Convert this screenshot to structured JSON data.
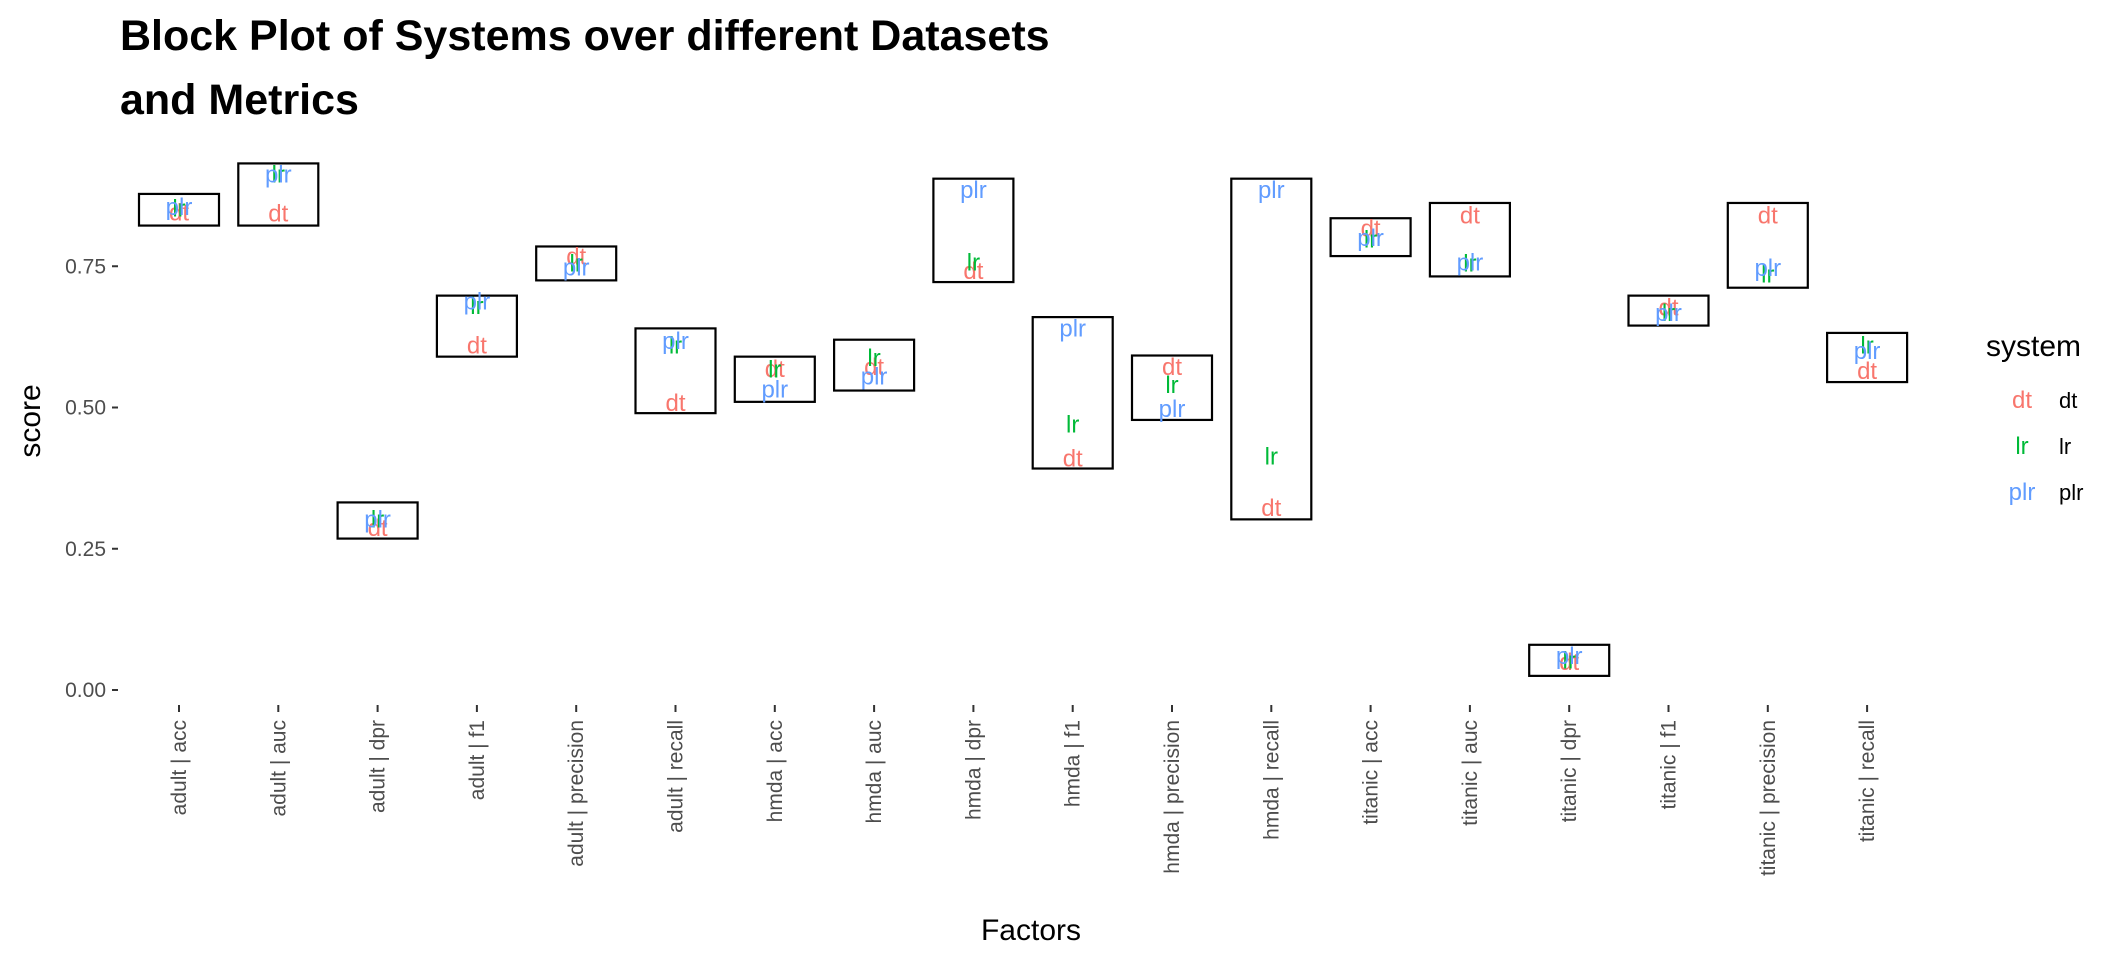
{
  "chart_data": {
    "type": "block",
    "title": "Block Plot of Systems over different Datasets and Metrics",
    "xlabel": "Factors",
    "ylabel": "score",
    "ylim": [
      0,
      1
    ],
    "yticks": [
      0.0,
      0.25,
      0.5,
      0.75
    ],
    "ytick_labels": [
      "0.00",
      "0.25",
      "0.50",
      "0.75"
    ],
    "grid": false,
    "legend_position": "right",
    "legend_title": "system",
    "legend": [
      {
        "key": "dt",
        "label": "dt",
        "color": "#F8766D"
      },
      {
        "key": "lr",
        "label": "lr",
        "color": "#00BA38"
      },
      {
        "key": "plr",
        "label": "plr",
        "color": "#619CFF"
      }
    ],
    "categories": [
      "adult | acc",
      "adult | auc",
      "adult | dpr",
      "adult | f1",
      "adult | precision",
      "adult | recall",
      "hmda | acc",
      "hmda | auc",
      "hmda | dpr",
      "hmda | f1",
      "hmda | precision",
      "hmda | recall",
      "titanic | acc",
      "titanic | auc",
      "titanic | dpr",
      "titanic | f1",
      "titanic | precision",
      "titanic | recall"
    ],
    "series": [
      {
        "name": "dt",
        "values": [
          0.845,
          0.843,
          0.287,
          0.61,
          0.767,
          0.508,
          0.568,
          0.572,
          0.742,
          0.41,
          0.572,
          0.322,
          0.817,
          0.84,
          0.05,
          0.677,
          0.84,
          0.565
        ]
      },
      {
        "name": "lr",
        "values": [
          0.852,
          0.912,
          0.302,
          0.68,
          0.755,
          0.61,
          0.567,
          0.588,
          0.757,
          0.47,
          0.54,
          0.413,
          0.797,
          0.755,
          0.052,
          0.667,
          0.735,
          0.61
        ]
      },
      {
        "name": "plr",
        "values": [
          0.855,
          0.912,
          0.302,
          0.688,
          0.748,
          0.618,
          0.532,
          0.555,
          0.885,
          0.64,
          0.497,
          0.885,
          0.8,
          0.757,
          0.06,
          0.667,
          0.747,
          0.6
        ]
      }
    ],
    "blocks": [
      {
        "ymin": 0.822,
        "ymax": 0.878
      },
      {
        "ymin": 0.822,
        "ymax": 0.932
      },
      {
        "ymin": 0.268,
        "ymax": 0.332
      },
      {
        "ymin": 0.59,
        "ymax": 0.698
      },
      {
        "ymin": 0.725,
        "ymax": 0.785
      },
      {
        "ymin": 0.49,
        "ymax": 0.64
      },
      {
        "ymin": 0.51,
        "ymax": 0.59
      },
      {
        "ymin": 0.53,
        "ymax": 0.62
      },
      {
        "ymin": 0.722,
        "ymax": 0.905
      },
      {
        "ymin": 0.392,
        "ymax": 0.66
      },
      {
        "ymin": 0.478,
        "ymax": 0.592
      },
      {
        "ymin": 0.302,
        "ymax": 0.905
      },
      {
        "ymin": 0.768,
        "ymax": 0.835
      },
      {
        "ymin": 0.732,
        "ymax": 0.862
      },
      {
        "ymin": 0.025,
        "ymax": 0.08
      },
      {
        "ymin": 0.645,
        "ymax": 0.698
      },
      {
        "ymin": 0.712,
        "ymax": 0.862
      },
      {
        "ymin": 0.545,
        "ymax": 0.632
      }
    ]
  }
}
